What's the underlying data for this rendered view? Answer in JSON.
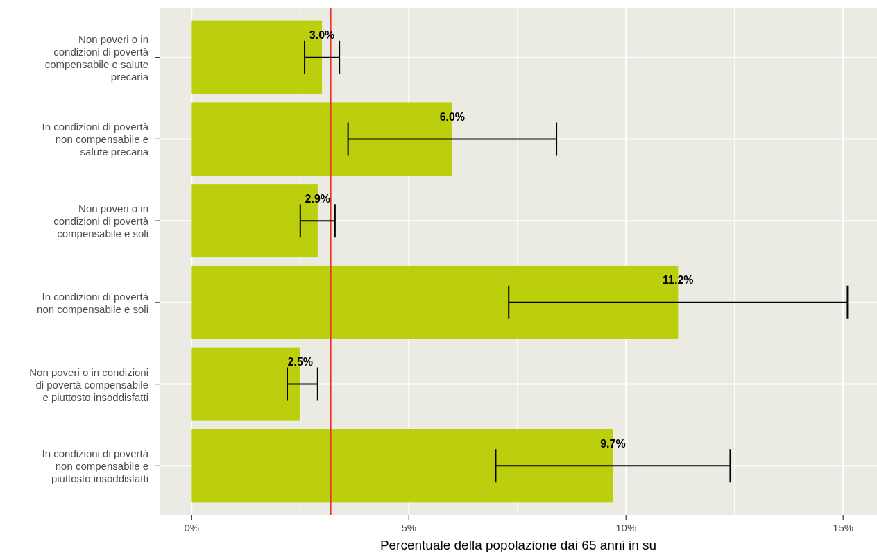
{
  "chart_data": {
    "type": "bar",
    "orientation": "horizontal",
    "categories": [
      "Non poveri o in\ncondizioni di povertà\ncompensabile e salute\nprecaria",
      "In condizioni di povertà\nnon compensabile e\nsalute precaria",
      "Non poveri o in\ncondizioni di povertà\ncompensabile e soli",
      "In condizioni di povertà\nnon compensabile e soli",
      "Non poveri o in condizioni\ndi povertà compensabile\ne piuttosto insoddisfatti",
      "In condizioni di povertà\nnon compensabile e\npiuttosto insoddisfatti"
    ],
    "values": [
      3.0,
      6.0,
      2.9,
      11.2,
      2.5,
      9.7
    ],
    "value_labels": [
      "3.0%",
      "6.0%",
      "2.9%",
      "11.2%",
      "2.5%",
      "9.7%"
    ],
    "errors": [
      [
        2.6,
        3.4
      ],
      [
        3.6,
        8.4
      ],
      [
        2.5,
        3.3
      ],
      [
        7.3,
        15.1
      ],
      [
        2.2,
        2.9
      ],
      [
        7.0,
        12.4
      ]
    ],
    "color": "#bccf0c",
    "xlim": [
      -0.74,
      15.78
    ],
    "xticks": [
      {
        "value": 0,
        "label": "0%"
      },
      {
        "value": 2.5,
        "label": null
      },
      {
        "value": 5,
        "label": "5%"
      },
      {
        "value": 7.5,
        "label": null
      },
      {
        "value": 10,
        "label": "10%"
      },
      {
        "value": 12.5,
        "label": null
      },
      {
        "value": 15,
        "label": "15%"
      }
    ],
    "xlabel": "Percentuale della popolazione dai 65 anni in su",
    "ref_lines": [
      {
        "axis": "x",
        "value": 3.2,
        "color": "#e8302a"
      }
    ],
    "grid": true
  }
}
